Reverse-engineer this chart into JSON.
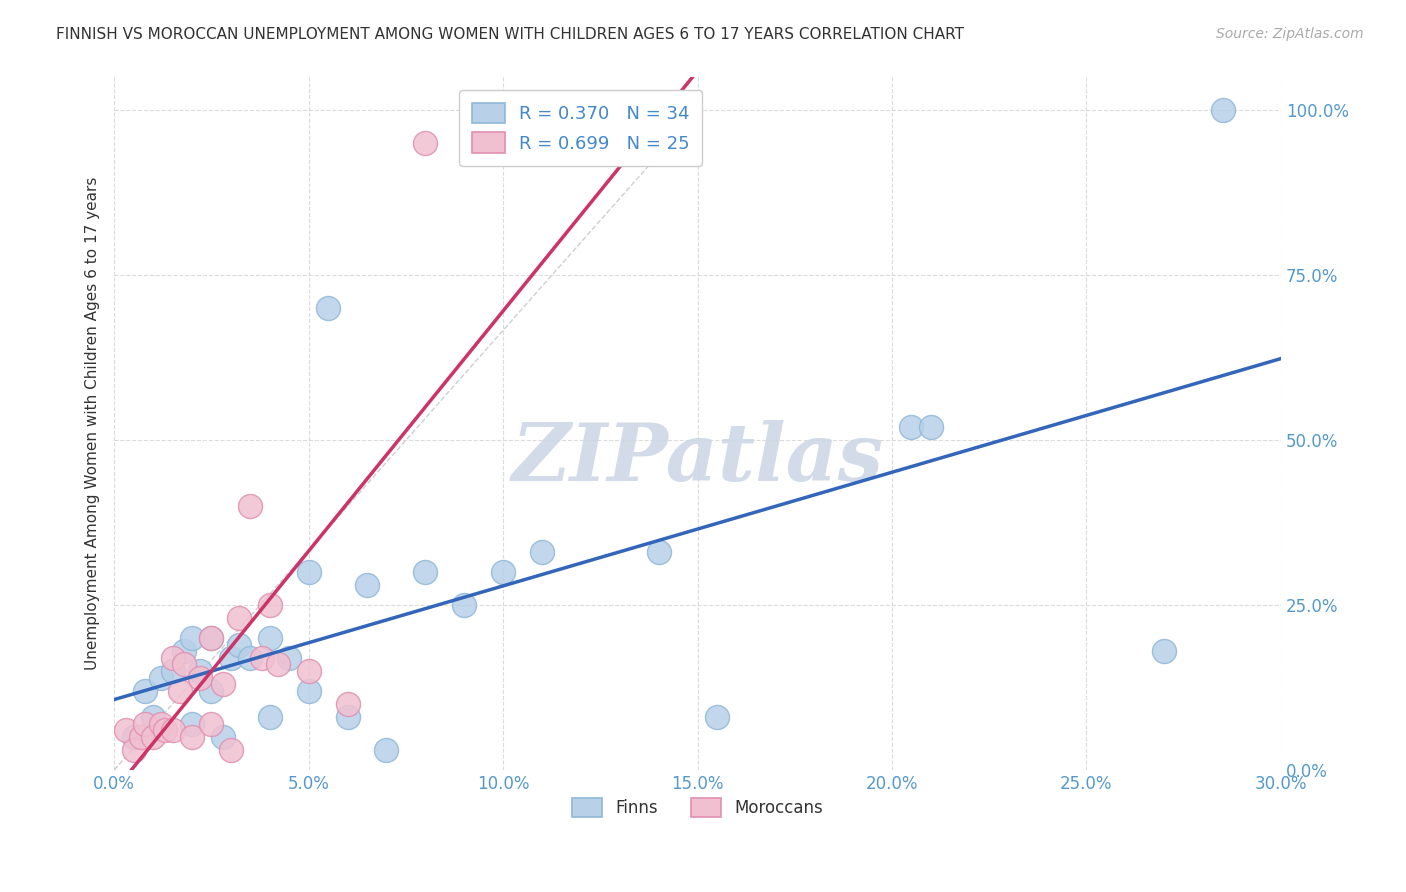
{
  "title": "FINNISH VS MOROCCAN UNEMPLOYMENT AMONG WOMEN WITH CHILDREN AGES 6 TO 17 YEARS CORRELATION CHART",
  "source": "Source: ZipAtlas.com",
  "ylabel_label": "Unemployment Among Women with Children Ages 6 to 17 years",
  "xlim": [
    0.0,
    0.3
  ],
  "ylim": [
    0.0,
    1.05
  ],
  "xticks": [
    0.0,
    0.05,
    0.1,
    0.15,
    0.2,
    0.25,
    0.3
  ],
  "yticks": [
    0.0,
    0.25,
    0.5,
    0.75,
    1.0
  ],
  "xtick_labels": [
    "0.0%",
    "5.0%",
    "10.0%",
    "15.0%",
    "20.0%",
    "25.0%",
    "30.0%"
  ],
  "ytick_labels": [
    "0.0%",
    "25.0%",
    "50.0%",
    "75.0%",
    "100.0%"
  ],
  "background_color": "#ffffff",
  "grid_color": "#cccccc",
  "watermark": "ZIPatlas",
  "watermark_color": "#cdd8e5",
  "legend_r_finn": "R = 0.370",
  "legend_n_finn": "N = 34",
  "legend_r_moroc": "R = 0.699",
  "legend_n_moroc": "N = 25",
  "finn_color": "#b8d0e8",
  "finn_edge_color": "#90b8d8",
  "moroc_color": "#f0c0d0",
  "moroc_edge_color": "#e090b0",
  "finn_trend_color": "#3366bb",
  "moroc_trend_color": "#cc3366",
  "tick_color": "#5599cc",
  "finn_scatter_x": [
    0.005,
    0.008,
    0.01,
    0.012,
    0.015,
    0.018,
    0.02,
    0.02,
    0.022,
    0.025,
    0.025,
    0.028,
    0.03,
    0.032,
    0.035,
    0.04,
    0.04,
    0.045,
    0.05,
    0.05,
    0.055,
    0.06,
    0.065,
    0.07,
    0.08,
    0.09,
    0.1,
    0.11,
    0.14,
    0.155,
    0.205,
    0.21,
    0.27,
    0.285
  ],
  "finn_scatter_y": [
    0.05,
    0.12,
    0.08,
    0.14,
    0.15,
    0.18,
    0.07,
    0.2,
    0.15,
    0.12,
    0.2,
    0.05,
    0.17,
    0.19,
    0.17,
    0.2,
    0.08,
    0.17,
    0.3,
    0.12,
    0.7,
    0.08,
    0.28,
    0.03,
    0.3,
    0.25,
    0.3,
    0.33,
    0.33,
    0.08,
    0.52,
    0.52,
    0.18,
    1.0
  ],
  "moroc_scatter_x": [
    0.003,
    0.005,
    0.007,
    0.008,
    0.01,
    0.012,
    0.013,
    0.015,
    0.015,
    0.017,
    0.018,
    0.02,
    0.022,
    0.025,
    0.025,
    0.028,
    0.03,
    0.032,
    0.035,
    0.038,
    0.04,
    0.042,
    0.05,
    0.06,
    0.08
  ],
  "moroc_scatter_y": [
    0.06,
    0.03,
    0.05,
    0.07,
    0.05,
    0.07,
    0.06,
    0.06,
    0.17,
    0.12,
    0.16,
    0.05,
    0.14,
    0.2,
    0.07,
    0.13,
    0.03,
    0.23,
    0.4,
    0.17,
    0.25,
    0.16,
    0.15,
    0.1,
    0.95
  ],
  "diagonal_line_x": [
    0.0,
    0.3
  ],
  "diagonal_line_y": [
    0.0,
    1.0
  ]
}
